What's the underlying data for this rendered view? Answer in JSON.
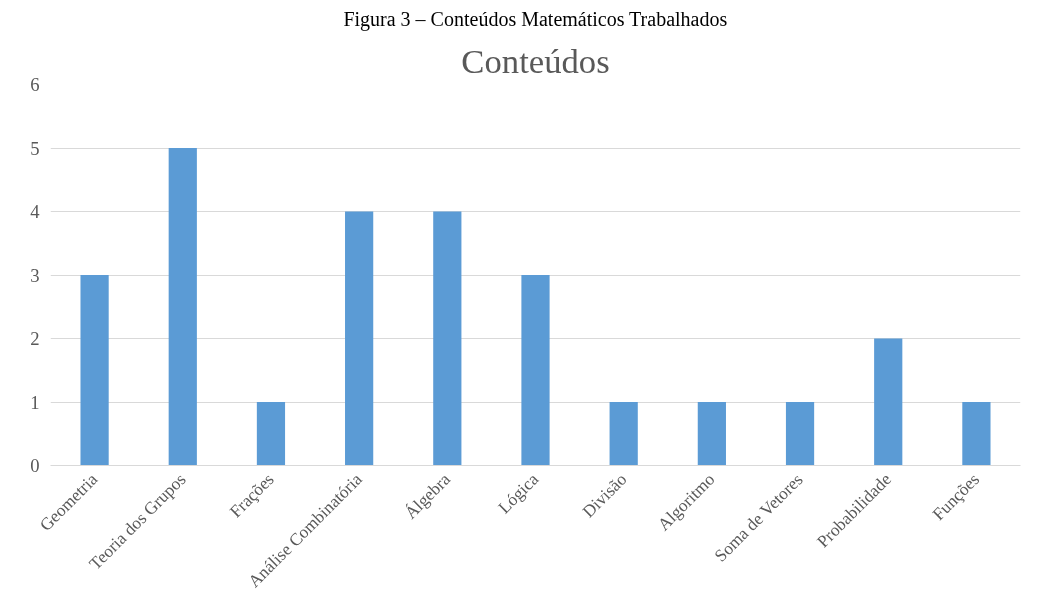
{
  "chart_data": {
    "type": "bar",
    "title": "Figura 3 – Conteúdos Matemáticos Trabalhados",
    "subtitle": "Conteúdos",
    "categories": [
      "Geometria",
      "Teoria dos Grupos",
      "Frações",
      "Análise Combinatória",
      "Álgebra",
      "Lógica",
      "Divisão",
      "Algoritmo",
      "Soma de Vetores",
      "Probabilidade",
      "Funções"
    ],
    "values": [
      3,
      5,
      1,
      4,
      4,
      3,
      1,
      1,
      1,
      2,
      1
    ],
    "color": "#5b9bd5",
    "ylim": [
      0,
      6
    ],
    "yticks": [
      0,
      1,
      2,
      3,
      4,
      5,
      6
    ],
    "grid": "y"
  }
}
